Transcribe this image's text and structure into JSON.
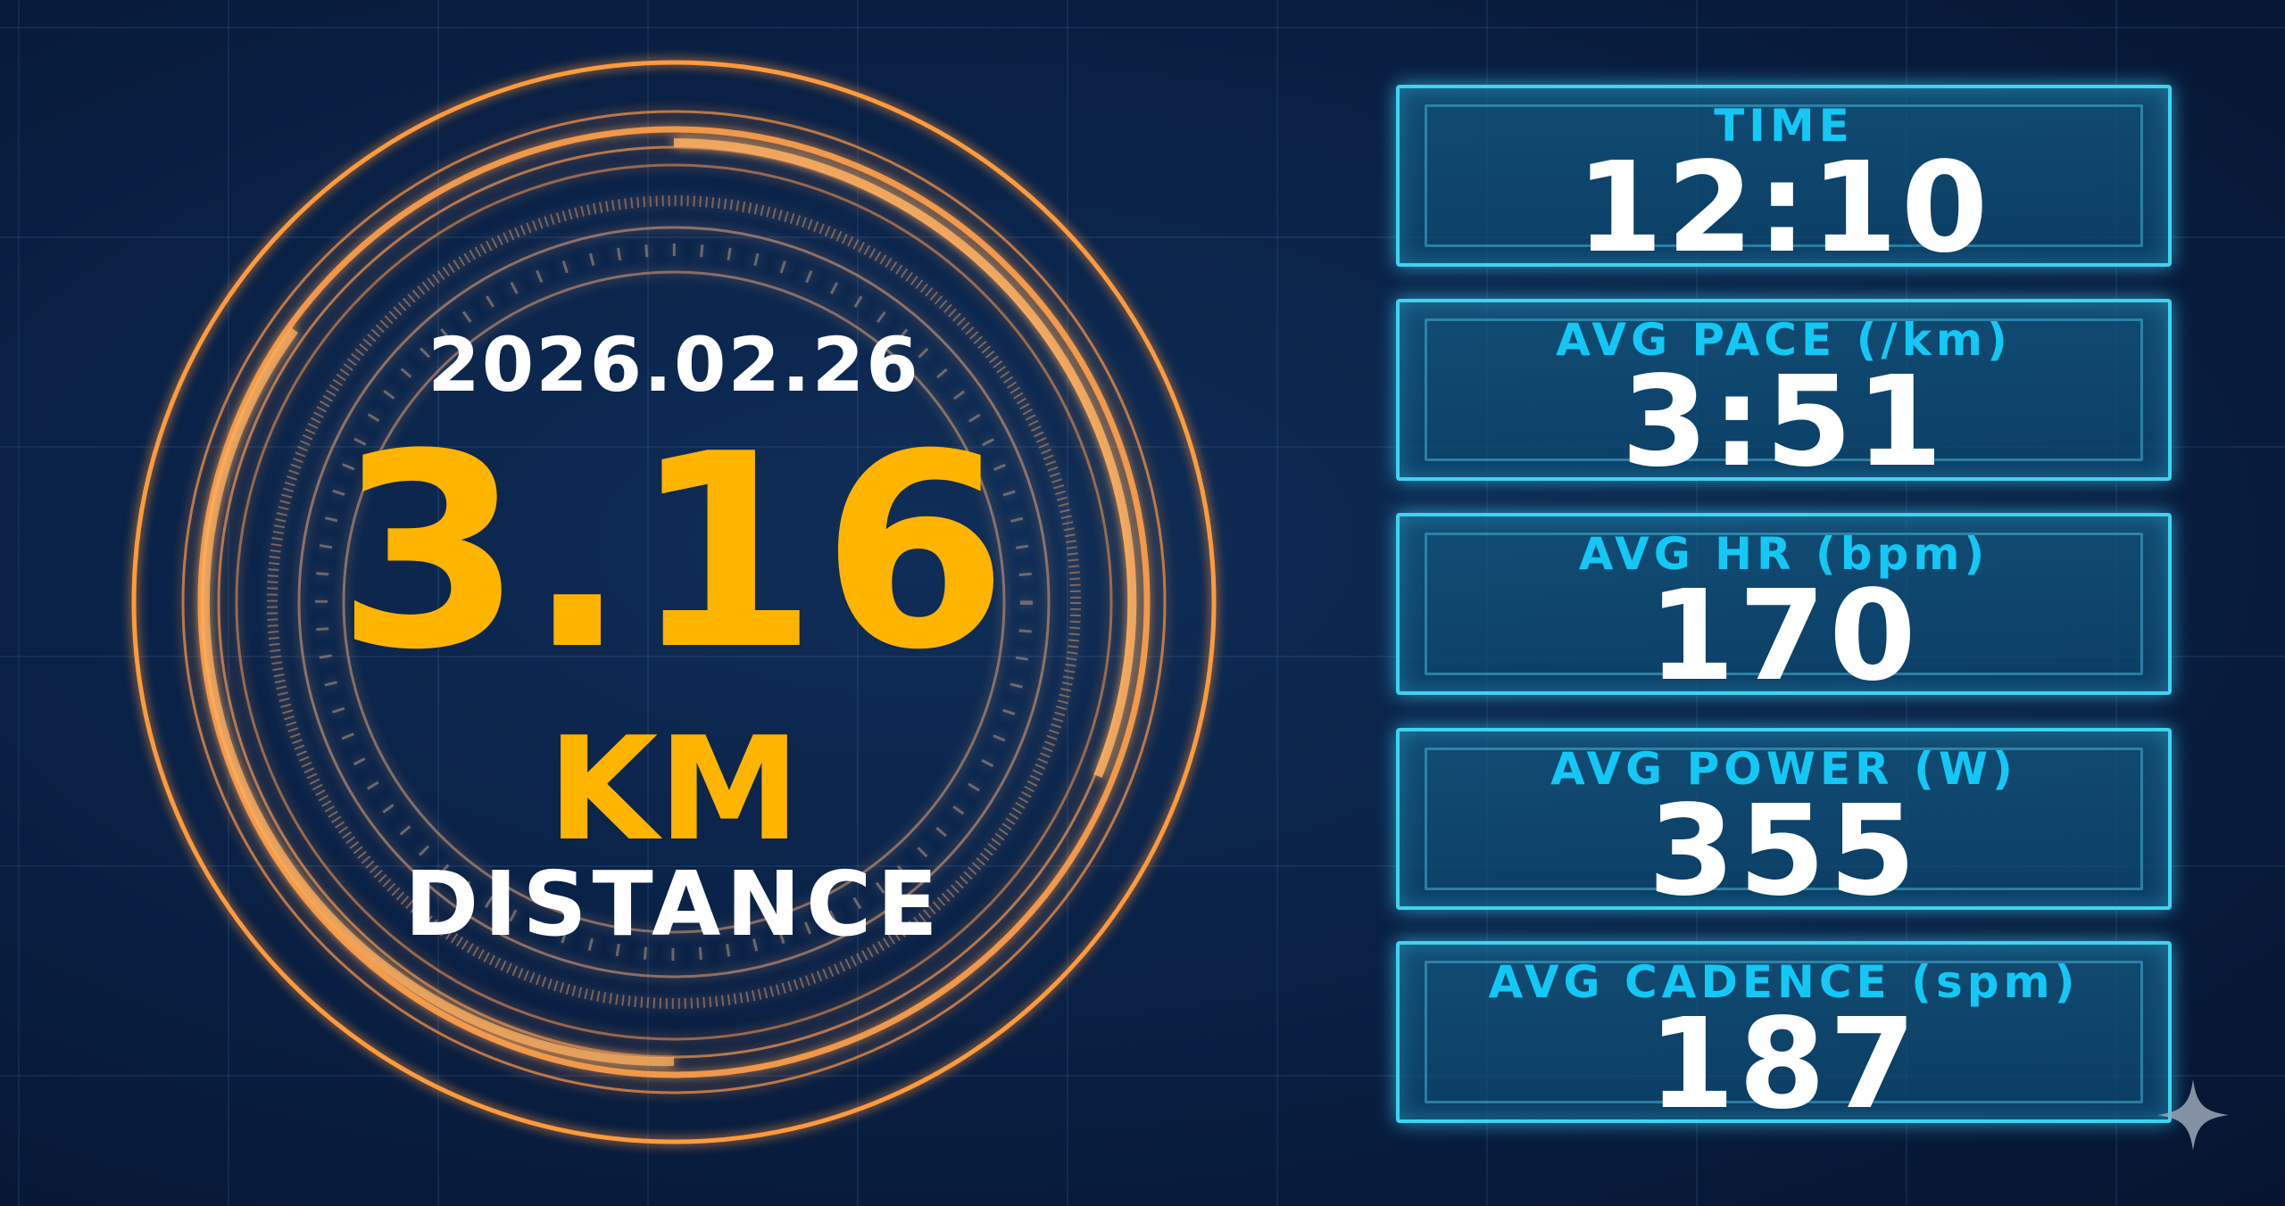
{
  "date": "2026.02.26",
  "distance": {
    "value": "3.16",
    "unit": "KM",
    "label": "DISTANCE"
  },
  "stats": [
    {
      "label": "TIME",
      "value": "12:10"
    },
    {
      "label": "AVG PACE (/km)",
      "value": "3:51"
    },
    {
      "label": "AVG HR (bpm)",
      "value": "170"
    },
    {
      "label": "AVG POWER (W)",
      "value": "355"
    },
    {
      "label": "AVG CADENCE (spm)",
      "value": "187"
    }
  ],
  "colors": {
    "accent": "#ffb400",
    "ring": "#ff9a3c",
    "label": "#13c8f5",
    "card_border": "#3fd3f0",
    "background": "#0a2146"
  },
  "icons": {
    "corner": "sparkle-icon"
  }
}
